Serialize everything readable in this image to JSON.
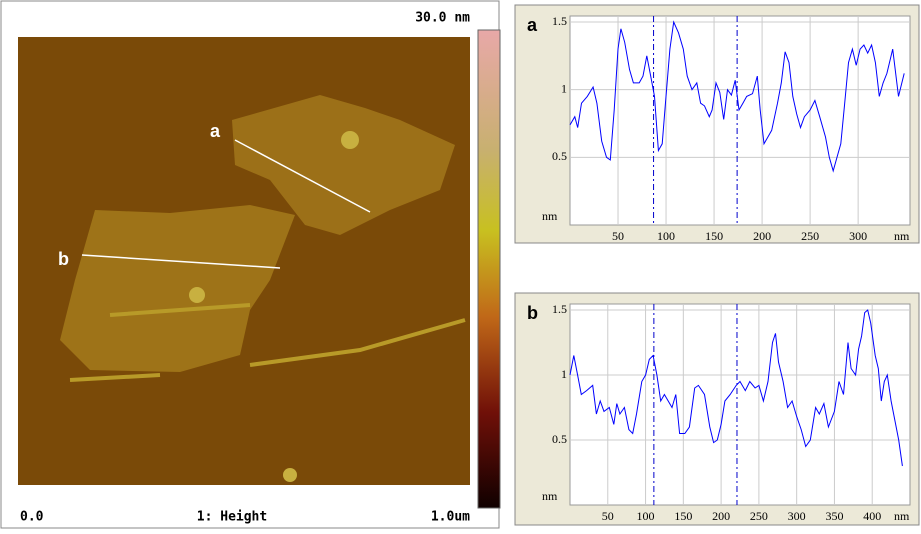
{
  "image": {
    "scale_max": "30.0 nm",
    "x_start": "0.0",
    "title": "1: Height",
    "x_end": "1.0um",
    "line_labels": [
      "a",
      "b"
    ]
  },
  "chart_data": [
    {
      "type": "line",
      "title": "a",
      "ylabel": "nm",
      "xlabel": "nm",
      "color": "#0000ff",
      "xlim": [
        0,
        354
      ],
      "ylim": [
        0,
        1.5
      ],
      "xticks": [
        50,
        100,
        150,
        200,
        250,
        300
      ],
      "yticks": [
        0.5,
        1,
        1.5
      ],
      "grid": true,
      "cursors": [
        87,
        174
      ],
      "x": [
        0,
        5,
        8,
        12,
        18,
        24,
        28,
        33,
        38,
        42,
        46,
        50,
        53,
        57,
        62,
        66,
        72,
        76,
        80,
        84,
        88,
        92,
        96,
        100,
        104,
        108,
        113,
        118,
        122,
        127,
        132,
        136,
        140,
        145,
        148,
        152,
        156,
        160,
        164,
        168,
        172,
        176,
        180,
        184,
        190,
        195,
        198,
        202,
        206,
        210,
        216,
        220,
        224,
        228,
        232,
        236,
        240,
        244,
        250,
        255,
        260,
        266,
        270,
        274,
        278,
        282,
        286,
        290,
        294,
        298,
        302,
        306,
        310,
        314,
        318,
        322,
        326,
        330,
        336,
        342,
        348
      ],
      "values": [
        0.74,
        0.8,
        0.72,
        0.9,
        0.95,
        1.02,
        0.9,
        0.62,
        0.5,
        0.48,
        0.85,
        1.3,
        1.45,
        1.35,
        1.15,
        1.05,
        1.05,
        1.1,
        1.25,
        1.1,
        0.95,
        0.55,
        0.6,
        0.95,
        1.3,
        1.5,
        1.42,
        1.3,
        1.1,
        1.0,
        1.05,
        0.9,
        0.88,
        0.8,
        0.85,
        1.05,
        0.98,
        0.78,
        1.0,
        0.96,
        1.07,
        0.85,
        0.9,
        0.95,
        0.97,
        1.1,
        0.85,
        0.6,
        0.65,
        0.7,
        0.9,
        1.05,
        1.28,
        1.2,
        0.95,
        0.82,
        0.72,
        0.8,
        0.85,
        0.92,
        0.8,
        0.65,
        0.5,
        0.4,
        0.5,
        0.6,
        0.9,
        1.2,
        1.3,
        1.18,
        1.3,
        1.33,
        1.27,
        1.33,
        1.2,
        0.95,
        1.05,
        1.12,
        1.3,
        0.95,
        1.12
      ]
    },
    {
      "type": "line",
      "title": "b",
      "ylabel": "nm",
      "xlabel": "nm",
      "color": "#0000ff",
      "xlim": [
        0,
        450
      ],
      "ylim": [
        0,
        1.5
      ],
      "xticks": [
        50,
        100,
        150,
        200,
        250,
        300,
        350,
        400
      ],
      "yticks": [
        0.5,
        1,
        1.5
      ],
      "grid": true,
      "cursors": [
        111,
        221
      ],
      "x": [
        0,
        5,
        10,
        15,
        22,
        30,
        35,
        40,
        45,
        52,
        58,
        62,
        66,
        72,
        78,
        83,
        88,
        95,
        100,
        105,
        110,
        115,
        120,
        125,
        130,
        135,
        140,
        145,
        152,
        158,
        165,
        170,
        178,
        185,
        190,
        195,
        200,
        205,
        212,
        220,
        225,
        232,
        238,
        245,
        250,
        256,
        262,
        268,
        272,
        276,
        282,
        288,
        294,
        300,
        306,
        312,
        318,
        325,
        330,
        336,
        342,
        350,
        356,
        362,
        368,
        372,
        378,
        382,
        386,
        390,
        394,
        398,
        404,
        408,
        412,
        416,
        420,
        425,
        430,
        435,
        440
      ],
      "values": [
        1.0,
        1.15,
        1.0,
        0.85,
        0.88,
        0.92,
        0.7,
        0.8,
        0.72,
        0.75,
        0.62,
        0.78,
        0.7,
        0.75,
        0.58,
        0.55,
        0.7,
        0.95,
        1.0,
        1.12,
        1.15,
        1.0,
        0.8,
        0.85,
        0.8,
        0.75,
        0.85,
        0.55,
        0.55,
        0.6,
        0.9,
        0.92,
        0.85,
        0.6,
        0.48,
        0.5,
        0.62,
        0.8,
        0.85,
        0.92,
        0.95,
        0.88,
        0.95,
        0.9,
        0.92,
        0.8,
        0.95,
        1.25,
        1.32,
        1.1,
        0.95,
        0.75,
        0.8,
        0.68,
        0.58,
        0.45,
        0.5,
        0.75,
        0.7,
        0.78,
        0.6,
        0.72,
        0.95,
        0.85,
        1.25,
        1.05,
        1.0,
        1.2,
        1.3,
        1.48,
        1.5,
        1.4,
        1.15,
        1.05,
        0.8,
        0.95,
        1.0,
        0.8,
        0.65,
        0.5,
        0.3
      ]
    }
  ]
}
